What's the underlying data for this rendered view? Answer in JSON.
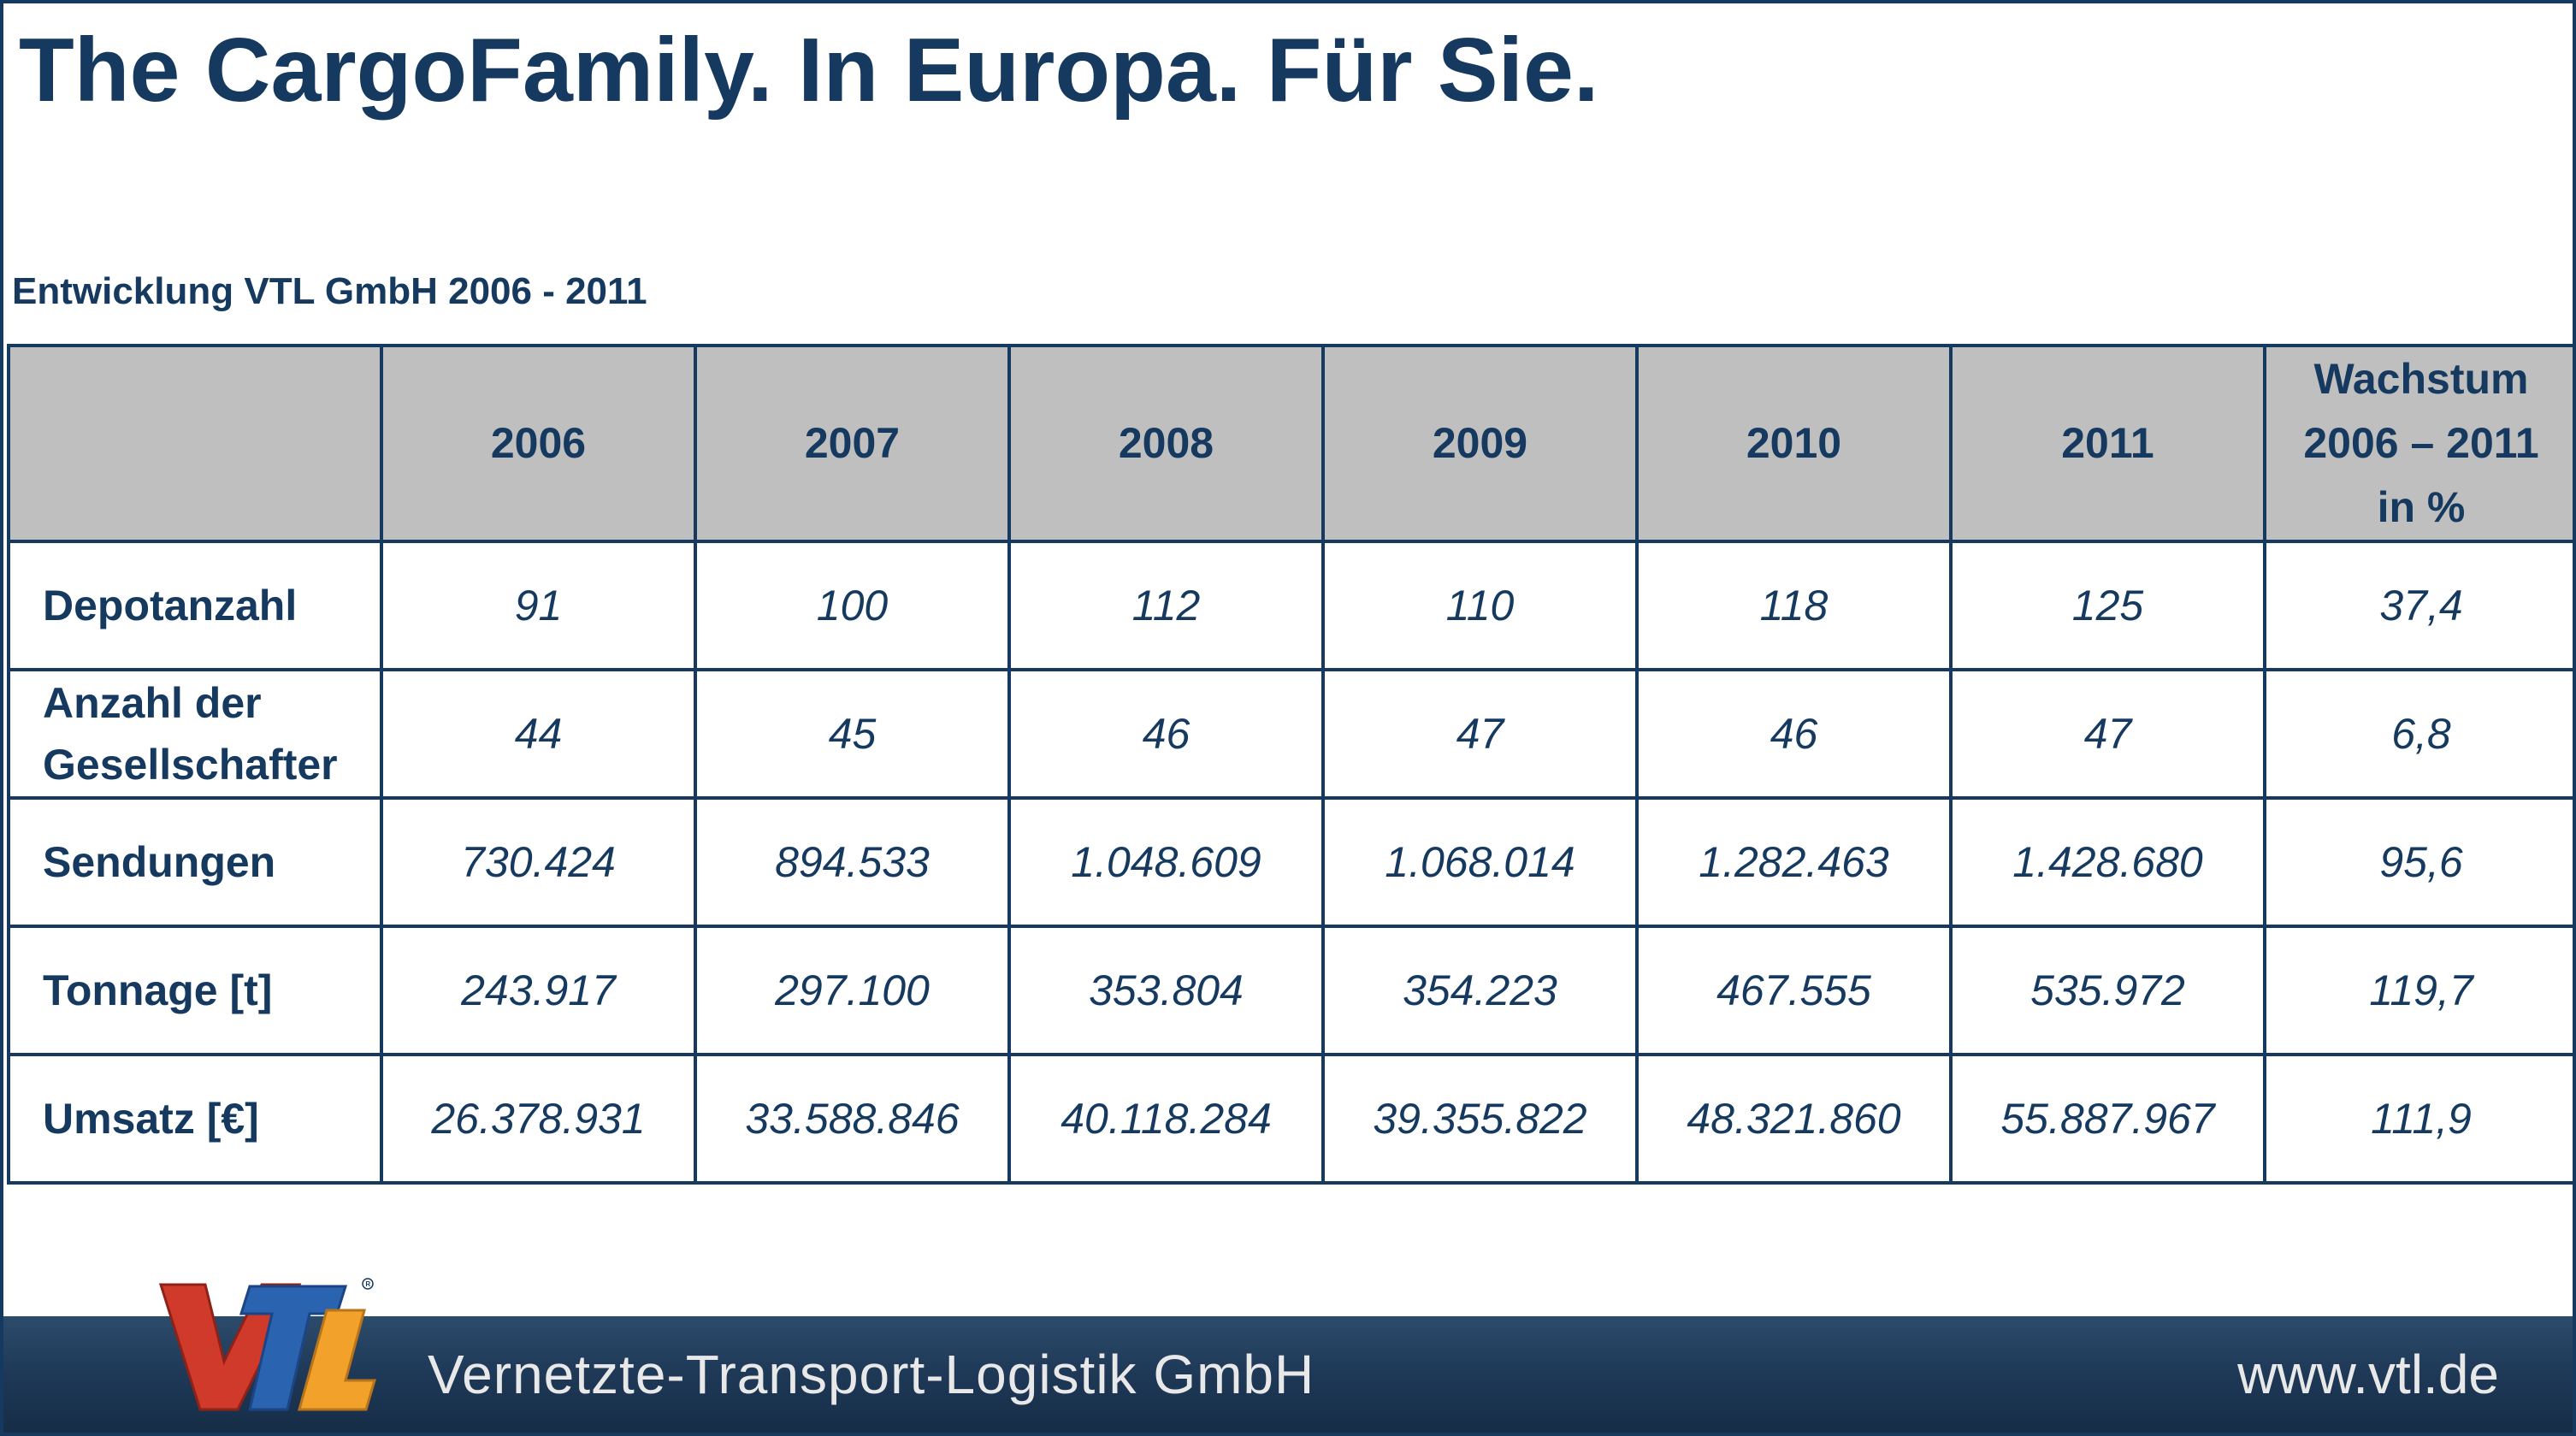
{
  "slide": {
    "title": "The CargoFamily. In Europa. Für Sie.",
    "subtitle": "Entwicklung VTL GmbH 2006 - 2011"
  },
  "table": {
    "years": [
      "2006",
      "2007",
      "2008",
      "2009",
      "2010",
      "2011"
    ],
    "growth_header": {
      "line1": "Wachstum",
      "line2": "2006 – 2011",
      "line3": "in %"
    },
    "rows": [
      {
        "label": "Depotanzahl",
        "values": [
          "91",
          "100",
          "112",
          "110",
          "118",
          "125"
        ],
        "growth": "37,4"
      },
      {
        "label": "Anzahl der Gesellschafter",
        "label_line1": "Anzahl der",
        "label_line2": "Gesellschafter",
        "values": [
          "44",
          "45",
          "46",
          "47",
          "46",
          "47"
        ],
        "growth": "6,8"
      },
      {
        "label": "Sendungen",
        "values": [
          "730.424",
          "894.533",
          "1.048.609",
          "1.068.014",
          "1.282.463",
          "1.428.680"
        ],
        "growth": "95,6"
      },
      {
        "label": "Tonnage [t]",
        "values": [
          "243.917",
          "297.100",
          "353.804",
          "354.223",
          "467.555",
          "535.972"
        ],
        "growth": "119,7"
      },
      {
        "label": "Umsatz [€]",
        "values": [
          "26.378.931",
          "33.588.846",
          "40.118.284",
          "39.355.822",
          "48.321.860",
          "55.887.967"
        ],
        "growth": "111,9"
      }
    ]
  },
  "footer": {
    "logo_text": "VTL",
    "company": "Vernetzte-Transport-Logistik GmbH",
    "website": "www.vtl.de"
  },
  "colors": {
    "navy": "#163a5f",
    "header_gray": "#bfbfbf",
    "footer_band": "#1d3755",
    "logo_red": "#d03a2a",
    "logo_blue": "#2a63b0",
    "logo_orange": "#f2a22a"
  }
}
